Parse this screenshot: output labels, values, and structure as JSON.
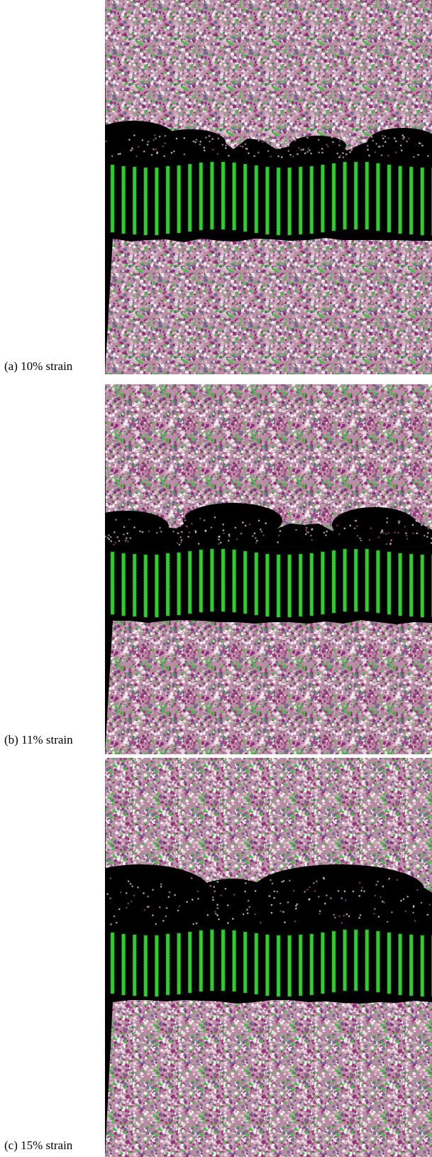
{
  "panels": [
    {
      "caption": "(a) 10% strain"
    },
    {
      "caption": "(b) 11% strain"
    },
    {
      "caption": "(c) 15% strain"
    }
  ]
}
